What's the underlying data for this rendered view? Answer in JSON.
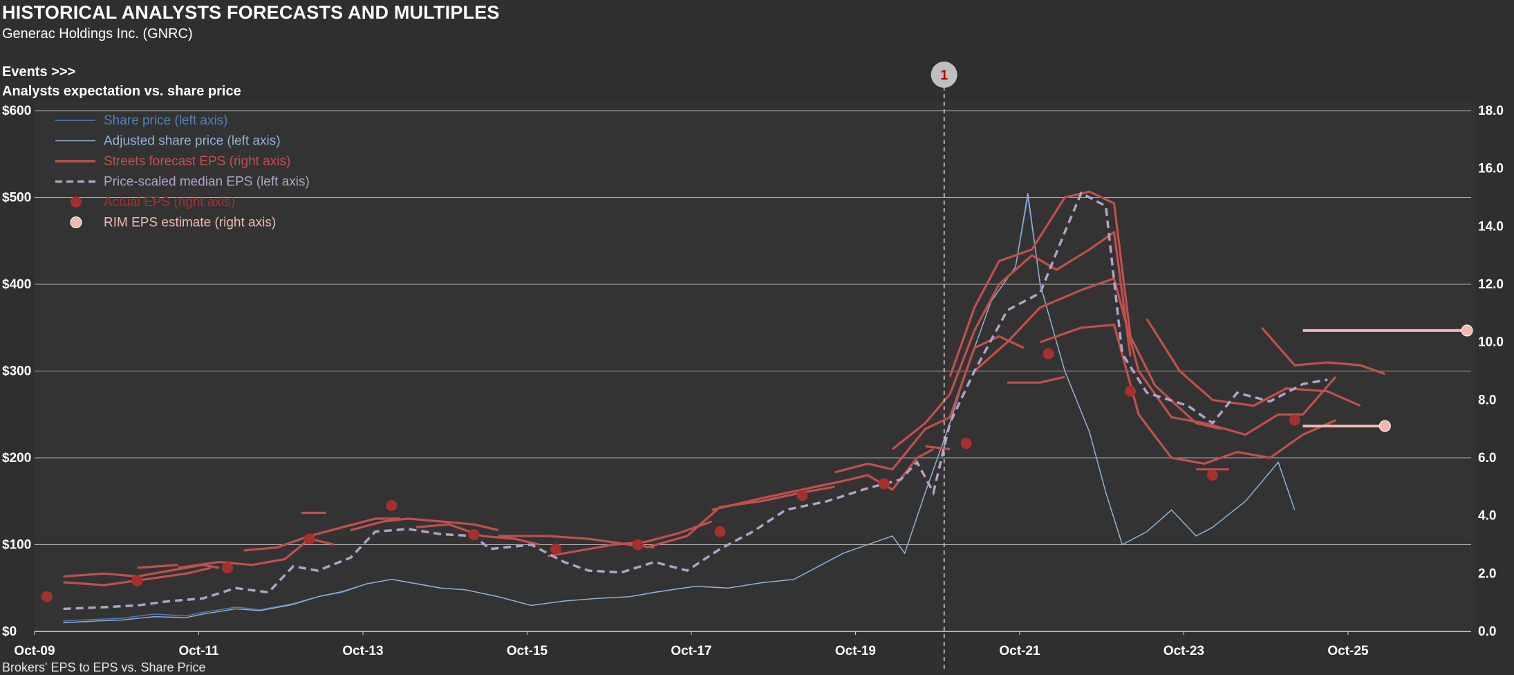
{
  "header": {
    "title": "HISTORICAL ANALYSTS FORECASTS AND MULTIPLES",
    "subtitle": "Generac Holdings Inc. (GNRC)",
    "events_label": "Events >>>",
    "chart_title": "Analysts expectation  vs. share price",
    "footnote": "Brokers' EPS to EPS vs. Share Price"
  },
  "colors": {
    "background": "#2f2f2f",
    "plot_bg": "#333333",
    "grid": "#d9d9d9",
    "share_price": "#4f81bd",
    "adjusted_price": "#95b3d7",
    "forecast": "#c0504d",
    "median_eps": "#b3a2c7",
    "actual": "#a5302d",
    "rim": "#f2b8b0",
    "event_marker": "#bfbfbf",
    "event_text": "#c00000"
  },
  "chart_data": {
    "type": "line",
    "x_ticks": [
      "Oct-09",
      "Oct-11",
      "Oct-13",
      "Oct-15",
      "Oct-17",
      "Oct-19",
      "Oct-21",
      "Oct-23",
      "Oct-25"
    ],
    "x_range": [
      "2009-10",
      "2027-04"
    ],
    "y_left": {
      "ticks": [
        "$0",
        "$100",
        "$200",
        "$300",
        "$400",
        "$500",
        "$600"
      ],
      "range": [
        0,
        600
      ]
    },
    "y_right": {
      "ticks": [
        "0.0",
        "2.0",
        "4.0",
        "6.0",
        "8.0",
        "10.0",
        "12.0",
        "14.0",
        "16.0",
        "18.0"
      ],
      "range": [
        0,
        18
      ]
    },
    "legend": {
      "placement": "top-left",
      "items": [
        {
          "label": "Share price (left axis)",
          "kind": "thin-line",
          "color": "#4f81bd"
        },
        {
          "label": "Adjusted share price (left axis)",
          "kind": "thin-line",
          "color": "#95b3d7"
        },
        {
          "label": "Streets forecast EPS (right axis)",
          "kind": "thick-line",
          "color": "#c0504d"
        },
        {
          "label": "Price-scaled median EPS (left axis)",
          "kind": "dashed-line",
          "color": "#b3a2c7"
        },
        {
          "label": "Actual EPS (right axis)",
          "kind": "dot",
          "color": "#a5302d"
        },
        {
          "label": "RIM EPS estimate (right axis)",
          "kind": "dot",
          "color": "#f2b8b0"
        }
      ]
    },
    "events": [
      {
        "label": "1",
        "x": 2020.83
      }
    ],
    "series": {
      "share_price": [
        [
          2010.1,
          12
        ],
        [
          2010.5,
          14
        ],
        [
          2010.8,
          15
        ],
        [
          2011.2,
          20
        ],
        [
          2011.6,
          18
        ],
        [
          2011.8,
          22
        ],
        [
          2012.2,
          28
        ],
        [
          2012.5,
          25
        ],
        [
          2012.9,
          32
        ],
        [
          2013.2,
          40
        ],
        [
          2013.5,
          45
        ],
        [
          2013.8,
          55
        ],
        [
          2014.1,
          60
        ],
        [
          2014.4,
          55
        ],
        [
          2014.7,
          50
        ],
        [
          2015.0,
          48
        ],
        [
          2015.4,
          40
        ],
        [
          2015.8,
          30
        ],
        [
          2016.2,
          35
        ],
        [
          2016.6,
          38
        ],
        [
          2017.0,
          40
        ],
        [
          2017.3,
          45
        ],
        [
          2017.8,
          52
        ],
        [
          2018.2,
          50
        ],
        [
          2018.6,
          56
        ],
        [
          2019.0,
          60
        ],
        [
          2019.3,
          75
        ],
        [
          2019.6,
          90
        ],
        [
          2019.9,
          100
        ],
        [
          2020.2,
          110
        ],
        [
          2020.35,
          90
        ],
        [
          2020.6,
          160
        ],
        [
          2020.9,
          240
        ],
        [
          2021.1,
          300
        ],
        [
          2021.4,
          380
        ],
        [
          2021.7,
          420
        ],
        [
          2021.85,
          500
        ],
        [
          2022.0,
          400
        ],
        [
          2022.3,
          300
        ],
        [
          2022.6,
          230
        ],
        [
          2022.8,
          160
        ],
        [
          2023.0,
          100
        ],
        [
          2023.3,
          115
        ],
        [
          2023.6,
          140
        ],
        [
          2023.9,
          110
        ],
        [
          2024.1,
          120
        ],
        [
          2024.5,
          150
        ],
        [
          2024.9,
          195
        ],
        [
          2025.1,
          140
        ]
      ],
      "adjusted_price": [
        [
          2010.1,
          10
        ],
        [
          2010.5,
          12
        ],
        [
          2010.8,
          13
        ],
        [
          2011.2,
          17
        ],
        [
          2011.6,
          16
        ],
        [
          2011.8,
          20
        ],
        [
          2012.2,
          26
        ],
        [
          2012.5,
          24
        ],
        [
          2012.9,
          31
        ],
        [
          2013.2,
          40
        ],
        [
          2013.5,
          46
        ],
        [
          2013.8,
          55
        ],
        [
          2014.1,
          60
        ],
        [
          2014.4,
          55
        ],
        [
          2014.7,
          50
        ],
        [
          2015.0,
          48
        ],
        [
          2015.4,
          40
        ],
        [
          2015.8,
          30
        ],
        [
          2016.2,
          35
        ],
        [
          2016.6,
          38
        ],
        [
          2017.0,
          40
        ],
        [
          2017.3,
          45
        ],
        [
          2017.8,
          52
        ],
        [
          2018.2,
          50
        ],
        [
          2018.6,
          56
        ],
        [
          2019.0,
          60
        ],
        [
          2019.3,
          75
        ],
        [
          2019.6,
          90
        ],
        [
          2019.9,
          100
        ],
        [
          2020.2,
          110
        ],
        [
          2020.35,
          90
        ],
        [
          2020.6,
          160
        ],
        [
          2020.9,
          240
        ],
        [
          2021.1,
          300
        ],
        [
          2021.4,
          380
        ],
        [
          2021.7,
          420
        ],
        [
          2021.85,
          505
        ],
        [
          2022.0,
          400
        ],
        [
          2022.3,
          300
        ],
        [
          2022.6,
          230
        ],
        [
          2022.8,
          160
        ],
        [
          2023.0,
          100
        ],
        [
          2023.3,
          115
        ],
        [
          2023.6,
          140
        ],
        [
          2023.9,
          110
        ],
        [
          2024.1,
          120
        ],
        [
          2024.5,
          150
        ],
        [
          2024.9,
          195
        ],
        [
          2025.1,
          140
        ]
      ],
      "median_eps": [
        [
          2010.1,
          26
        ],
        [
          2010.6,
          28
        ],
        [
          2011.0,
          30
        ],
        [
          2011.4,
          35
        ],
        [
          2011.8,
          38
        ],
        [
          2012.2,
          50
        ],
        [
          2012.6,
          45
        ],
        [
          2012.9,
          75
        ],
        [
          2013.2,
          70
        ],
        [
          2013.6,
          85
        ],
        [
          2013.9,
          115
        ],
        [
          2014.3,
          118
        ],
        [
          2014.7,
          112
        ],
        [
          2015.1,
          110
        ],
        [
          2015.3,
          95
        ],
        [
          2015.8,
          100
        ],
        [
          2016.2,
          80
        ],
        [
          2016.5,
          70
        ],
        [
          2016.9,
          68
        ],
        [
          2017.3,
          80
        ],
        [
          2017.7,
          70
        ],
        [
          2018.1,
          95
        ],
        [
          2018.5,
          115
        ],
        [
          2018.9,
          140
        ],
        [
          2019.4,
          150
        ],
        [
          2019.9,
          165
        ],
        [
          2020.3,
          175
        ],
        [
          2020.5,
          195
        ],
        [
          2020.7,
          160
        ],
        [
          2020.9,
          240
        ],
        [
          2021.2,
          300
        ],
        [
          2021.6,
          370
        ],
        [
          2022.0,
          390
        ],
        [
          2022.3,
          460
        ],
        [
          2022.5,
          505
        ],
        [
          2022.8,
          490
        ],
        [
          2023.0,
          320
        ],
        [
          2023.3,
          275
        ],
        [
          2023.8,
          260
        ],
        [
          2024.1,
          240
        ],
        [
          2024.4,
          275
        ],
        [
          2024.8,
          265
        ],
        [
          2025.2,
          285
        ],
        [
          2025.5,
          290
        ]
      ],
      "forecast_lines": [
        [
          [
            2010.1,
            1.9
          ],
          [
            2010.6,
            2.0
          ],
          [
            2011.0,
            1.9
          ],
          [
            2011.4,
            2.1
          ],
          [
            2011.8,
            2.3
          ],
          [
            2012.0,
            2.2
          ]
        ],
        [
          [
            2010.1,
            1.7
          ],
          [
            2010.6,
            1.6
          ],
          [
            2011.1,
            1.8
          ],
          [
            2011.6,
            2.0
          ],
          [
            2011.9,
            2.2
          ]
        ],
        [
          [
            2011.5,
            2.2
          ],
          [
            2012.0,
            2.4
          ],
          [
            2012.4,
            2.3
          ],
          [
            2012.8,
            2.5
          ],
          [
            2013.1,
            3.2
          ],
          [
            2013.4,
            3.0
          ]
        ],
        [
          [
            2012.3,
            2.8
          ],
          [
            2012.7,
            2.9
          ],
          [
            2013.1,
            3.3
          ],
          [
            2013.5,
            3.6
          ],
          [
            2013.9,
            3.9
          ],
          [
            2014.2,
            3.9
          ]
        ],
        [
          [
            2013.6,
            3.5
          ],
          [
            2014.0,
            3.8
          ],
          [
            2014.3,
            3.9
          ],
          [
            2014.7,
            3.8
          ],
          [
            2015.1,
            3.7
          ],
          [
            2015.4,
            3.5
          ]
        ],
        [
          [
            2014.4,
            3.6
          ],
          [
            2014.8,
            3.7
          ],
          [
            2015.2,
            3.3
          ],
          [
            2015.6,
            3.2
          ],
          [
            2015.9,
            3.0
          ]
        ],
        [
          [
            2015.4,
            3.3
          ],
          [
            2016.0,
            3.3
          ],
          [
            2016.5,
            3.2
          ],
          [
            2017.0,
            3.0
          ],
          [
            2017.3,
            2.9
          ]
        ],
        [
          [
            2016.0,
            2.6
          ],
          [
            2016.4,
            2.8
          ],
          [
            2016.8,
            3.0
          ],
          [
            2017.2,
            3.1
          ],
          [
            2017.6,
            3.4
          ],
          [
            2018.0,
            3.8
          ]
        ],
        [
          [
            2017.2,
            2.9
          ],
          [
            2017.7,
            3.3
          ],
          [
            2018.1,
            4.3
          ],
          [
            2018.6,
            4.5
          ],
          [
            2019.1,
            4.8
          ],
          [
            2019.5,
            5.0
          ]
        ],
        [
          [
            2018.0,
            4.2
          ],
          [
            2018.6,
            4.6
          ],
          [
            2019.1,
            4.9
          ],
          [
            2019.6,
            5.2
          ],
          [
            2019.9,
            5.4
          ],
          [
            2020.2,
            4.9
          ],
          [
            2020.5,
            6.0
          ],
          [
            2020.7,
            6.3
          ]
        ],
        [
          [
            2019.5,
            5.5
          ],
          [
            2019.9,
            5.8
          ],
          [
            2020.2,
            5.6
          ],
          [
            2020.6,
            7.0
          ],
          [
            2020.9,
            7.4
          ],
          [
            2021.2,
            9.8
          ],
          [
            2021.5,
            10.2
          ],
          [
            2021.8,
            9.8
          ]
        ],
        [
          [
            2020.2,
            6.3
          ],
          [
            2020.6,
            7.2
          ],
          [
            2020.9,
            8.2
          ],
          [
            2021.2,
            10.4
          ],
          [
            2021.5,
            12.0
          ],
          [
            2021.9,
            13.0
          ],
          [
            2022.2,
            12.5
          ],
          [
            2022.6,
            13.2
          ],
          [
            2022.9,
            13.8
          ],
          [
            2023.1,
            9.5
          ]
        ],
        [
          [
            2020.9,
            8.8
          ],
          [
            2021.2,
            11.2
          ],
          [
            2021.5,
            12.8
          ],
          [
            2021.9,
            13.2
          ],
          [
            2022.3,
            15.0
          ],
          [
            2022.6,
            15.2
          ],
          [
            2022.9,
            14.8
          ],
          [
            2023.1,
            10.2
          ],
          [
            2023.4,
            8.5
          ],
          [
            2023.9,
            7.2
          ],
          [
            2024.2,
            7.0
          ]
        ],
        [
          [
            2021.2,
            9.0
          ],
          [
            2021.6,
            10.0
          ],
          [
            2022.0,
            11.2
          ],
          [
            2022.5,
            11.8
          ],
          [
            2022.9,
            12.2
          ],
          [
            2023.2,
            9.0
          ],
          [
            2023.6,
            7.4
          ],
          [
            2024.0,
            7.2
          ],
          [
            2024.5,
            6.8
          ],
          [
            2024.9,
            7.5
          ],
          [
            2025.2,
            7.5
          ],
          [
            2025.6,
            8.8
          ]
        ],
        [
          [
            2022.0,
            10.0
          ],
          [
            2022.5,
            10.5
          ],
          [
            2022.9,
            10.6
          ],
          [
            2023.2,
            7.5
          ],
          [
            2023.6,
            6.0
          ],
          [
            2024.0,
            5.8
          ],
          [
            2024.4,
            6.2
          ],
          [
            2024.8,
            6.0
          ],
          [
            2025.2,
            6.8
          ],
          [
            2025.6,
            7.3
          ]
        ],
        [
          [
            2023.3,
            10.8
          ],
          [
            2023.7,
            9.0
          ],
          [
            2024.1,
            8.0
          ],
          [
            2024.6,
            7.8
          ],
          [
            2025.0,
            8.4
          ],
          [
            2025.5,
            8.3
          ],
          [
            2025.9,
            7.8
          ]
        ],
        [
          [
            2024.7,
            10.5
          ],
          [
            2025.1,
            9.2
          ],
          [
            2025.5,
            9.3
          ],
          [
            2025.9,
            9.2
          ],
          [
            2026.2,
            8.9
          ]
        ],
        [
          [
            2023.9,
            5.6
          ],
          [
            2024.3,
            5.6
          ]
        ],
        [
          [
            2020.6,
            6.4
          ],
          [
            2020.9,
            6.3
          ]
        ],
        [
          [
            2021.6,
            8.6
          ],
          [
            2022.0,
            8.6
          ],
          [
            2022.3,
            8.8
          ]
        ],
        [
          [
            2013.0,
            4.1
          ],
          [
            2013.3,
            4.1
          ]
        ],
        [
          [
            2011.0,
            2.2
          ],
          [
            2011.5,
            2.3
          ]
        ]
      ],
      "actual_eps": [
        [
          2009.9,
          1.2
        ],
        [
          2011.0,
          1.75
        ],
        [
          2012.1,
          2.2
        ],
        [
          2013.1,
          3.2
        ],
        [
          2014.1,
          4.35
        ],
        [
          2015.1,
          3.35
        ],
        [
          2016.1,
          2.85
        ],
        [
          2017.1,
          3.0
        ],
        [
          2018.1,
          3.45
        ],
        [
          2019.1,
          4.7
        ],
        [
          2020.1,
          5.1
        ],
        [
          2021.1,
          6.5
        ],
        [
          2022.1,
          9.6
        ],
        [
          2023.1,
          8.3
        ],
        [
          2024.1,
          5.4
        ],
        [
          2025.1,
          7.3
        ]
      ],
      "rim_eps": [
        {
          "x_from": 2025.2,
          "x_to": 2026.2,
          "y": 7.1
        },
        {
          "x_from": 2025.2,
          "x_to": 2027.2,
          "y": 10.4
        }
      ]
    }
  }
}
